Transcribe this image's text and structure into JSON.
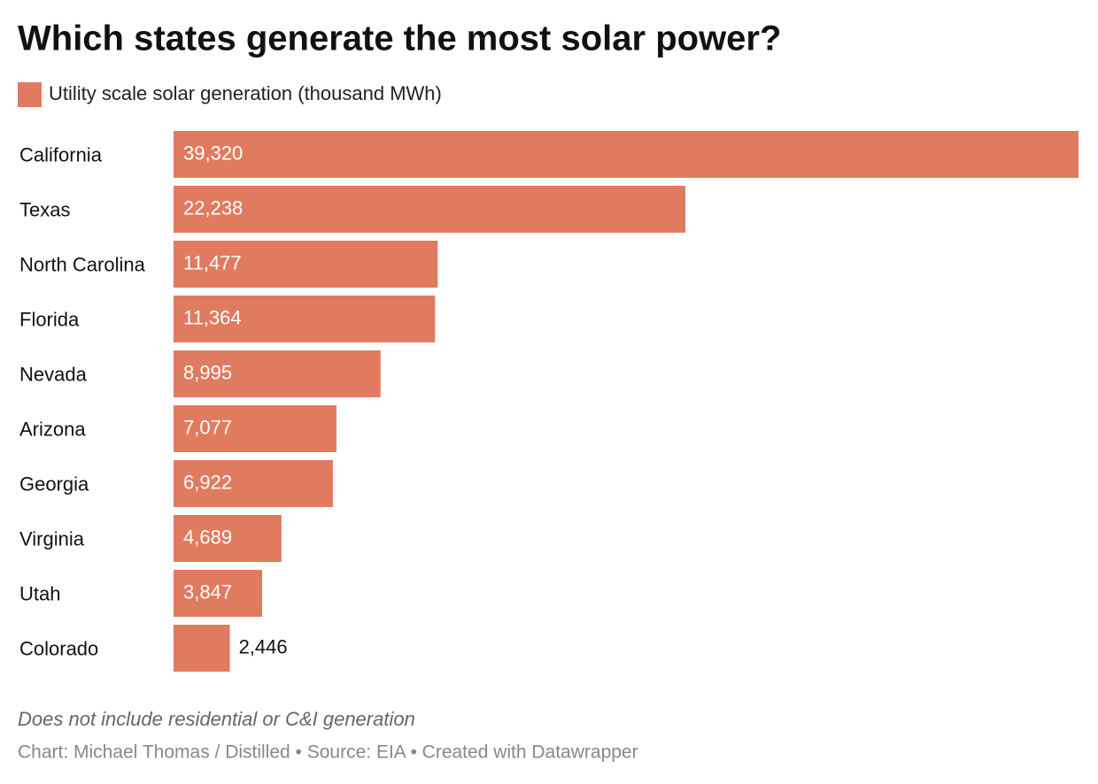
{
  "chart_data": {
    "type": "bar",
    "orientation": "horizontal",
    "title": "Which states generate the most solar power?",
    "categories": [
      "California",
      "Texas",
      "North Carolina",
      "Florida",
      "Nevada",
      "Arizona",
      "Georgia",
      "Virginia",
      "Utah",
      "Colorado"
    ],
    "series": [
      {
        "name": "Utility scale solar generation (thousand MWh)",
        "color": "#e07b5f",
        "values": [
          39320,
          22238,
          11477,
          11364,
          8995,
          7077,
          6922,
          4689,
          3847,
          2446
        ],
        "value_labels": [
          "39,320",
          "22,238",
          "11,477",
          "11,364",
          "8,995",
          "7,077",
          "6,922",
          "4,689",
          "3,847",
          "2,446"
        ]
      }
    ],
    "note": "Does not include residential or C&I generation",
    "footer": "Chart: Michael Thomas / Distilled • Source: EIA • Created with Datawrapper"
  }
}
